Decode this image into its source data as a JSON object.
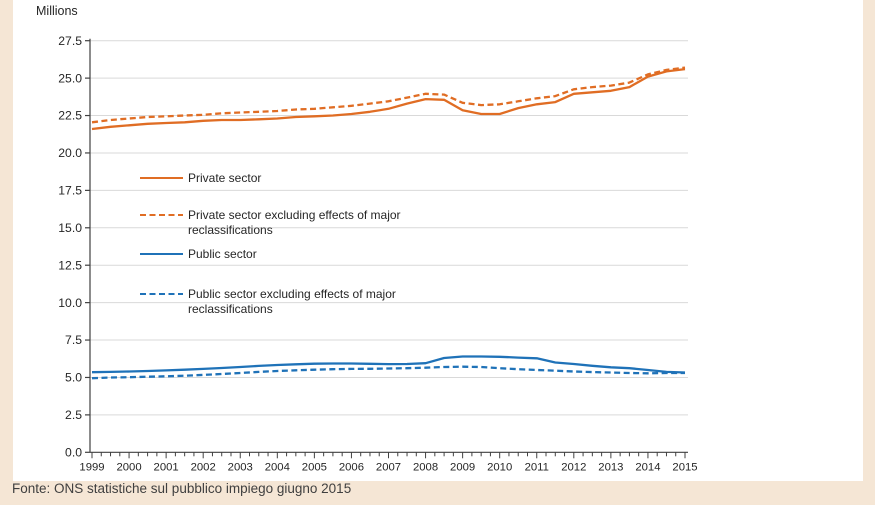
{
  "page": {
    "background_color": "#f5e6d5",
    "panel_color": "#ffffff",
    "caption": "Fonte: ONS statistiche sul pubblico impiego giugno 2015"
  },
  "chart_data": {
    "type": "line",
    "title": "",
    "unit_label": "Millions",
    "xlabel": "",
    "ylabel": "Millions",
    "ylim": [
      0,
      27.5
    ],
    "ytick_step": 2.5,
    "ytick_labels": [
      "0.0",
      "2.5",
      "5.0",
      "7.5",
      "10.0",
      "12.5",
      "15.0",
      "17.5",
      "20.0",
      "22.5",
      "25.0",
      "27.5"
    ],
    "xlim": [
      1999,
      2015
    ],
    "xticks": [
      1999,
      2000,
      2001,
      2002,
      2003,
      2004,
      2005,
      2006,
      2007,
      2008,
      2009,
      2010,
      2011,
      2012,
      2013,
      2014,
      2015
    ],
    "minor_xtick_interval": 0.25,
    "grid": "horizontal",
    "legend_position": "upper-left-inside",
    "axis_color": "#404040",
    "grid_color": "#d9d9d9",
    "text_color": "#262626",
    "x": [
      1999,
      1999.5,
      2000,
      2000.5,
      2001,
      2001.5,
      2002,
      2002.5,
      2003,
      2003.5,
      2004,
      2004.5,
      2005,
      2005.5,
      2006,
      2006.5,
      2007,
      2007.5,
      2008,
      2008.5,
      2009,
      2009.5,
      2010,
      2010.5,
      2011,
      2011.5,
      2012,
      2012.5,
      2013,
      2013.5,
      2014,
      2014.5,
      2015
    ],
    "series": [
      {
        "name": "Private sector",
        "style": "solid",
        "color": "#e06d24",
        "values": [
          21.6,
          21.75,
          21.85,
          21.95,
          22.0,
          22.05,
          22.15,
          22.2,
          22.2,
          22.25,
          22.3,
          22.4,
          22.45,
          22.5,
          22.6,
          22.75,
          22.95,
          23.3,
          23.6,
          23.55,
          22.85,
          22.6,
          22.6,
          23.0,
          23.25,
          23.4,
          23.95,
          24.05,
          24.15,
          24.4,
          25.1,
          25.45,
          25.6
        ]
      },
      {
        "name": "Private sector excluding effects of major reclassifications",
        "style": "dashed",
        "color": "#e06d24",
        "values": [
          22.05,
          22.2,
          22.3,
          22.4,
          22.45,
          22.5,
          22.55,
          22.65,
          22.7,
          22.75,
          22.8,
          22.9,
          22.95,
          23.05,
          23.15,
          23.3,
          23.45,
          23.7,
          23.95,
          23.9,
          23.35,
          23.2,
          23.25,
          23.45,
          23.65,
          23.8,
          24.25,
          24.4,
          24.5,
          24.7,
          25.25,
          25.55,
          25.7
        ]
      },
      {
        "name": "Public sector",
        "style": "solid",
        "color": "#1f72b8",
        "values": [
          5.35,
          5.37,
          5.4,
          5.43,
          5.47,
          5.52,
          5.57,
          5.63,
          5.7,
          5.77,
          5.83,
          5.88,
          5.92,
          5.93,
          5.93,
          5.91,
          5.89,
          5.9,
          5.95,
          6.3,
          6.4,
          6.4,
          6.38,
          6.33,
          6.28,
          6.0,
          5.9,
          5.78,
          5.68,
          5.62,
          5.5,
          5.37,
          5.33
        ]
      },
      {
        "name": "Public sector excluding effects of major reclassifications",
        "style": "dashed",
        "color": "#1f72b8",
        "values": [
          4.95,
          5.0,
          5.02,
          5.05,
          5.08,
          5.12,
          5.17,
          5.23,
          5.3,
          5.37,
          5.43,
          5.48,
          5.52,
          5.55,
          5.57,
          5.58,
          5.6,
          5.62,
          5.65,
          5.7,
          5.72,
          5.7,
          5.62,
          5.55,
          5.5,
          5.45,
          5.4,
          5.36,
          5.33,
          5.3,
          5.28,
          5.3,
          5.3
        ]
      }
    ]
  }
}
